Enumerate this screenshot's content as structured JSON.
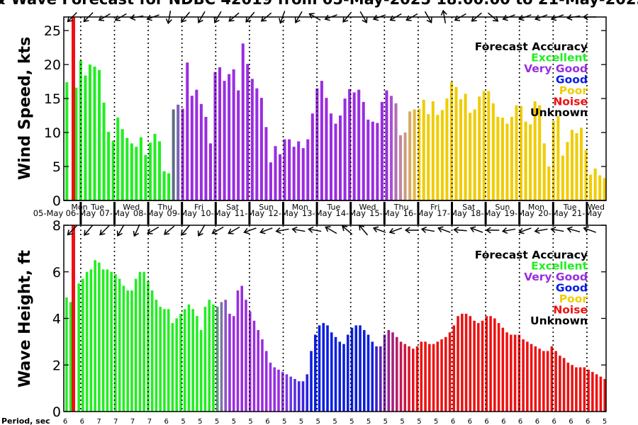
{
  "chart_data": {
    "type": "bar",
    "title": "& Wave Forecast for NDBC 42019 from 05-May-2025 18:00:00 to 21-May-2025",
    "x_ticks": [
      {
        "day": "Mon",
        "date": "05-May"
      },
      {
        "day": "Tue",
        "date": "06-May"
      },
      {
        "day": "Wed",
        "date": "07-May"
      },
      {
        "day": "Thu",
        "date": "08-May"
      },
      {
        "day": "Fri",
        "date": "09-May"
      },
      {
        "day": "Sat",
        "date": "10-May"
      },
      {
        "day": "Sun",
        "date": "11-May"
      },
      {
        "day": "Mon",
        "date": "12-May"
      },
      {
        "day": "Tue",
        "date": "13-May"
      },
      {
        "day": "Wed",
        "date": "14-May"
      },
      {
        "day": "Thu",
        "date": "15-May"
      },
      {
        "day": "Fri",
        "date": "16-May"
      },
      {
        "day": "Sat",
        "date": "17-May"
      },
      {
        "day": "Sun",
        "date": "18-May"
      },
      {
        "day": "Mon",
        "date": "19-May"
      },
      {
        "day": "Tue",
        "date": "20-May"
      },
      {
        "day": "Wed",
        "date": "21-May"
      }
    ],
    "legend_title": "Forecast Accuracy",
    "legend": [
      {
        "label": "Excellent",
        "color": "#22ee22"
      },
      {
        "label": "Very Good",
        "color": "#9a2de0"
      },
      {
        "label": "Good",
        "color": "#0a1ee0"
      },
      {
        "label": "Poor",
        "color": "#f0cc00"
      },
      {
        "label": "Noise",
        "color": "#ee1111"
      },
      {
        "label": "Unknown",
        "color": "#000000"
      }
    ],
    "legend_placement": "top-right",
    "now_marker_color": "#ee1111",
    "panels": [
      {
        "ylabel": "Wind Speed, kts",
        "ylim": [
          0,
          27
        ],
        "yticks": [
          0,
          5,
          10,
          15,
          20,
          25
        ],
        "values": [
          17.4,
          0,
          16.6,
          20.6,
          18.4,
          20.0,
          19.7,
          19.2,
          14.4,
          10.1,
          8.8,
          12.2,
          10.5,
          9.2,
          8.4,
          7.9,
          9.3,
          6.7,
          8.5,
          9.8,
          8.7,
          4.3,
          4.0,
          13.4,
          14.1,
          13.5,
          20.3,
          15.4,
          16.3,
          14.2,
          12.3,
          8.4,
          18.9,
          19.6,
          17.6,
          18.6,
          19.3,
          16.2,
          23.1,
          20.1,
          17.9,
          16.5,
          15.1,
          10.8,
          5.6,
          8.0,
          6.8,
          9.0,
          9.0,
          7.9,
          8.7,
          7.7,
          9.0,
          12.8,
          16.5,
          17.6,
          15.1,
          12.8,
          11.3,
          12.5,
          15.0,
          16.4,
          15.9,
          16.3,
          14.5,
          11.9,
          11.6,
          11.4,
          14.5,
          16.2,
          15.4,
          14.3,
          9.6,
          10.0,
          13.1,
          13.4,
          13.5,
          14.8,
          12.7,
          14.6,
          12.6,
          13.3,
          15.0,
          17.4,
          16.7,
          14.9,
          15.7,
          12.9,
          13.4,
          15.3,
          16.1,
          16.1,
          14.3,
          12.3,
          12.2,
          11.3,
          12.3,
          14.0,
          13.9,
          11.6,
          11.2,
          14.6,
          14.0,
          8.4,
          5.0,
          11.7,
          12.4,
          6.6,
          8.6,
          10.4,
          9.9,
          10.7,
          7.4,
          3.8,
          4.7,
          3.7,
          3.3
        ],
        "colors": [
          "#22ee22",
          "#22ee22",
          "#22ee22",
          "#22ee22",
          "#22ee22",
          "#22ee22",
          "#22ee22",
          "#22ee22",
          "#22ee22",
          "#22ee22",
          "#22ee22",
          "#22ee22",
          "#22ee22",
          "#22ee22",
          "#22ee22",
          "#22ee22",
          "#22ee22",
          "#22ee22",
          "#22ee22",
          "#22ee22",
          "#22ee22",
          "#22ee22",
          "#22ee22",
          "#5e6e88",
          "#7a62b4",
          "#9a2de0",
          "#9a2de0",
          "#9a2de0",
          "#9a2de0",
          "#9a2de0",
          "#9a2de0",
          "#9a2de0",
          "#9a2de0",
          "#9a2de0",
          "#9a2de0",
          "#9a2de0",
          "#9a2de0",
          "#9a2de0",
          "#9a2de0",
          "#9a2de0",
          "#9a2de0",
          "#9a2de0",
          "#9a2de0",
          "#9a2de0",
          "#9a2de0",
          "#9a2de0",
          "#9a2de0",
          "#9a2de0",
          "#9a2de0",
          "#9a2de0",
          "#9a2de0",
          "#9a2de0",
          "#9a2de0",
          "#9a2de0",
          "#9a2de0",
          "#9a2de0",
          "#9a2de0",
          "#9a2de0",
          "#9a2de0",
          "#9a2de0",
          "#9a2de0",
          "#9a2de0",
          "#9a2de0",
          "#9a2de0",
          "#9a2de0",
          "#9a2de0",
          "#9a2de0",
          "#9a2de0",
          "#9a2de0",
          "#9a2de0",
          "#a94fcf",
          "#b46db7",
          "#c0879c",
          "#cc9a80",
          "#d8aa62",
          "#e4b844",
          "#f0cc00",
          "#f0cc00",
          "#f0cc00",
          "#f0cc00",
          "#f0cc00",
          "#f0cc00",
          "#f0cc00",
          "#f0cc00",
          "#f0cc00",
          "#f0cc00",
          "#f0cc00",
          "#f0cc00",
          "#f0cc00",
          "#f0cc00",
          "#f0cc00",
          "#f0cc00",
          "#f0cc00",
          "#f0cc00",
          "#f0cc00",
          "#f0cc00",
          "#f0cc00",
          "#f0cc00",
          "#f0cc00",
          "#f0cc00",
          "#f0cc00",
          "#f0cc00",
          "#f0cc00",
          "#f0cc00",
          "#f0cc00",
          "#f0cc00",
          "#f0cc00",
          "#f0cc00",
          "#f0cc00",
          "#f0cc00",
          "#f0cc00",
          "#f0cc00",
          "#f0cc00",
          "#f0cc00",
          "#f0cc00",
          "#f0cc00",
          "#f0cc00"
        ],
        "arrows_deg": [
          135,
          135,
          150,
          150,
          170,
          160,
          100,
          130,
          120,
          120,
          140,
          130,
          140,
          110,
          120,
          210,
          160,
          130,
          60,
          160,
          150,
          150,
          60,
          260,
          150,
          140,
          40,
          160,
          160,
          160,
          160,
          170,
          180,
          150
        ]
      },
      {
        "ylabel": "Wave Height, ft",
        "ylim": [
          0,
          8
        ],
        "yticks": [
          0,
          2,
          4,
          6,
          8
        ],
        "values": [
          4.9,
          4.7,
          0,
          5.5,
          5.7,
          6.0,
          6.1,
          6.5,
          6.4,
          6.1,
          6.1,
          6.0,
          5.9,
          5.7,
          5.4,
          5.2,
          5.2,
          5.7,
          6.0,
          6.0,
          5.6,
          5.2,
          4.8,
          4.5,
          4.4,
          4.4,
          3.8,
          4.0,
          4.2,
          4.4,
          4.6,
          4.4,
          4.1,
          3.5,
          4.5,
          4.8,
          4.6,
          4.5,
          4.7,
          4.8,
          4.2,
          4.1,
          5.2,
          5.4,
          4.8,
          4.3,
          3.9,
          3.5,
          3.1,
          2.6,
          2.1,
          1.9,
          1.8,
          1.7,
          1.6,
          1.5,
          1.4,
          1.3,
          1.3,
          1.6,
          2.6,
          3.3,
          3.7,
          3.8,
          3.7,
          3.4,
          3.2,
          3.0,
          2.9,
          3.3,
          3.6,
          3.7,
          3.7,
          3.5,
          3.3,
          3.0,
          2.8,
          2.8,
          3.3,
          3.5,
          3.4,
          3.2,
          3.0,
          2.9,
          2.8,
          2.7,
          2.8,
          3.0,
          3.0,
          2.9,
          2.9,
          3.0,
          3.1,
          3.2,
          3.4,
          3.7,
          4.1,
          4.2,
          4.2,
          4.1,
          3.9,
          3.8,
          3.9,
          4.1,
          4.1,
          4.0,
          3.8,
          3.6,
          3.4,
          3.3,
          3.3,
          3.3,
          3.1,
          3.0,
          2.9,
          2.8,
          2.7,
          2.6,
          2.6,
          2.8,
          2.6,
          2.4,
          2.3,
          2.1,
          2.0,
          1.9,
          1.9,
          1.9,
          1.8,
          1.7,
          1.6,
          1.5,
          1.4
        ],
        "colors": [
          "#22ee22",
          "#22ee22",
          "#22ee22",
          "#22ee22",
          "#22ee22",
          "#22ee22",
          "#22ee22",
          "#22ee22",
          "#22ee22",
          "#22ee22",
          "#22ee22",
          "#22ee22",
          "#22ee22",
          "#22ee22",
          "#22ee22",
          "#22ee22",
          "#22ee22",
          "#22ee22",
          "#22ee22",
          "#22ee22",
          "#22ee22",
          "#22ee22",
          "#22ee22",
          "#22ee22",
          "#22ee22",
          "#22ee22",
          "#22ee22",
          "#22ee22",
          "#22ee22",
          "#22ee22",
          "#22ee22",
          "#22ee22",
          "#22ee22",
          "#22ee22",
          "#22ee22",
          "#22ee22",
          "#22ee22",
          "#5e9a78",
          "#7a70a8",
          "#8a55c0",
          "#9a2de0",
          "#9a2de0",
          "#9a2de0",
          "#9a2de0",
          "#9a2de0",
          "#9a2de0",
          "#9a2de0",
          "#9a2de0",
          "#9a2de0",
          "#9a2de0",
          "#9a2de0",
          "#9a2de0",
          "#9a2de0",
          "#8c32e0",
          "#7c36e0",
          "#6c3ae0",
          "#5a30e0",
          "#4828e0",
          "#3a24e0",
          "#2c20e0",
          "#0a1ee0",
          "#0a1ee0",
          "#0a1ee0",
          "#0a1ee0",
          "#0a1ee0",
          "#0a1ee0",
          "#0a1ee0",
          "#0a1ee0",
          "#0a1ee0",
          "#0a1ee0",
          "#0a1ee0",
          "#0a1ee0",
          "#0a1ee0",
          "#0a1ee0",
          "#0a1ee0",
          "#0a1ee0",
          "#3a20c8",
          "#5a22b8",
          "#7a24a8",
          "#9a2090",
          "#a8207c",
          "#b41e6a",
          "#c01a56",
          "#cc1644",
          "#d81432",
          "#e41220",
          "#ee1111",
          "#ee1111",
          "#ee1111",
          "#ee1111",
          "#ee1111",
          "#ee1111",
          "#ee1111",
          "#ee1111",
          "#ee1111",
          "#ee1111",
          "#ee1111",
          "#ee1111",
          "#ee1111",
          "#ee1111",
          "#ee1111",
          "#ee1111",
          "#ee1111",
          "#ee1111",
          "#ee1111",
          "#ee1111",
          "#ee1111",
          "#ee1111",
          "#ee1111",
          "#ee1111",
          "#ee1111",
          "#ee1111",
          "#ee1111",
          "#ee1111",
          "#ee1111",
          "#ee1111",
          "#ee1111",
          "#ee1111",
          "#ee1111",
          "#ee1111",
          "#ee1111",
          "#ee1111",
          "#ee1111",
          "#ee1111",
          "#ee1111",
          "#ee1111",
          "#ee1111",
          "#ee1111",
          "#ee1111",
          "#ee1111",
          "#ee1111",
          "#ee1111",
          "#ee1111",
          "#ee1111"
        ],
        "arrows_deg": [
          135,
          130,
          135,
          120,
          115,
          150,
          140,
          130,
          120,
          150,
          150,
          160,
          160,
          170,
          190,
          190,
          210,
          220,
          230,
          200,
          160,
          180,
          190,
          200,
          185,
          200,
          180,
          170,
          160,
          170,
          190,
          195,
          200,
          190
        ]
      }
    ],
    "period_label": "Period, sec",
    "periods": [
      "6",
      "6",
      "7",
      "7",
      "7",
      "7",
      "6",
      "5",
      "5",
      "5",
      "5",
      "5",
      "6",
      "5",
      "5",
      "5",
      "5",
      "5",
      "5",
      "5",
      "5",
      "5",
      "5",
      "6",
      "6",
      "6",
      "6",
      "6",
      "6",
      "6",
      "6",
      "6",
      "5"
    ]
  }
}
